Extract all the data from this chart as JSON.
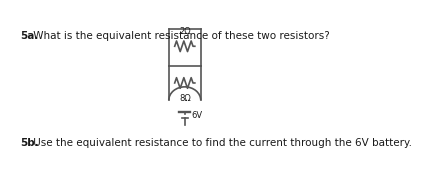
{
  "title_5a_bold": "5a.",
  "title_5a_text": " What is the equivalent resistance of these two resistors?",
  "title_5b_bold": "5b.",
  "title_5b_text": " Use the equivalent resistance to find the current through the 6V battery.",
  "resistor1_label": "2Ω",
  "resistor2_label": "8Ω",
  "battery_label": "6V",
  "bg_color": "#ffffff",
  "text_color": "#1a1a1a",
  "circuit_color": "#555555",
  "font_size_main": 7.5,
  "font_size_label": 6.0
}
